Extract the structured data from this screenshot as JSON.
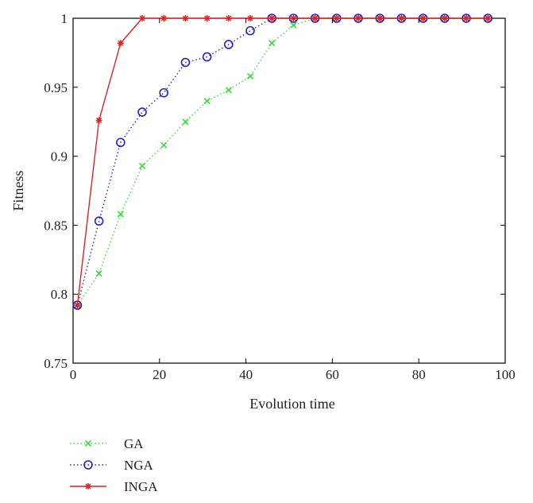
{
  "chart_data": {
    "type": "line",
    "xlabel": "Evolution time",
    "ylabel": "Fitness",
    "xlim": [
      0,
      100
    ],
    "ylim": [
      0.75,
      1
    ],
    "xticks": [
      "0",
      "20",
      "40",
      "60",
      "80",
      "100"
    ],
    "yticks": [
      "0.75",
      "0.8",
      "0.85",
      "0.9",
      "0.95",
      "1"
    ],
    "grid": false,
    "legend_position": "below",
    "x": [
      1,
      6,
      11,
      16,
      21,
      26,
      31,
      36,
      41,
      46,
      51,
      56,
      61,
      66,
      71,
      76,
      81,
      86,
      91,
      96
    ],
    "series": [
      {
        "name": "GA",
        "color": "#33dd33",
        "line_style": "dotted",
        "marker": "x",
        "values": [
          0.792,
          0.815,
          0.858,
          0.893,
          0.908,
          0.925,
          0.94,
          0.948,
          0.958,
          0.982,
          0.995,
          1.0,
          1.0,
          1.0,
          1.0,
          1.0,
          1.0,
          1.0,
          1.0,
          1.0
        ]
      },
      {
        "name": "NGA",
        "color": "#2222cc",
        "line_style": "dotted",
        "marker": "circle",
        "values": [
          0.792,
          0.853,
          0.91,
          0.932,
          0.946,
          0.968,
          0.972,
          0.981,
          0.991,
          1.0,
          1.0,
          1.0,
          1.0,
          1.0,
          1.0,
          1.0,
          1.0,
          1.0,
          1.0,
          1.0
        ]
      },
      {
        "name": "INGA",
        "color": "#dd2222",
        "line_style": "solid",
        "marker": "star",
        "values": [
          0.792,
          0.926,
          0.982,
          1.0,
          1.0,
          1.0,
          1.0,
          1.0,
          1.0,
          1.0,
          1.0,
          1.0,
          1.0,
          1.0,
          1.0,
          1.0,
          1.0,
          1.0,
          1.0,
          1.0
        ]
      }
    ]
  }
}
